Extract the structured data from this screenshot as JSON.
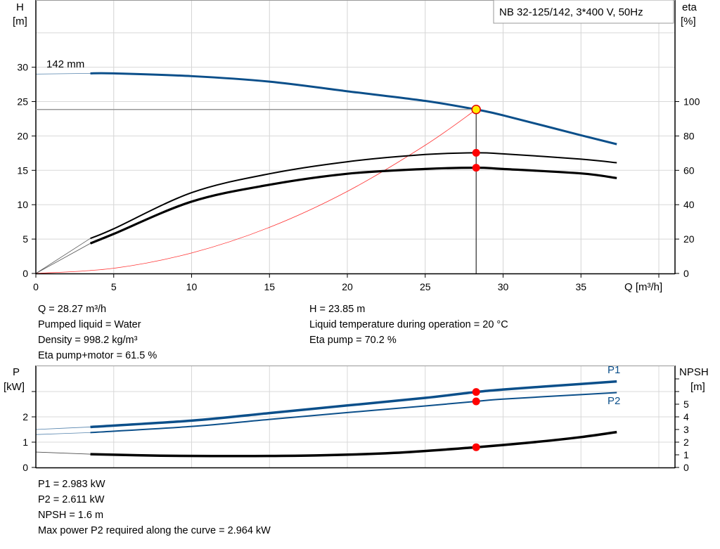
{
  "chart_data": [
    {
      "type": "line",
      "title": "NB 32-125/142, 3*400 V, 50Hz",
      "xlabel": "Q [m³/h]",
      "ylabel": "H\n[m]",
      "ylabel_right": "eta\n[%]",
      "xlim": [
        0,
        41
      ],
      "ylim": [
        0,
        40
      ],
      "ylim_right": [
        0,
        160
      ],
      "grid": true,
      "x_ticks": [
        "0",
        "5",
        "10",
        "15",
        "20",
        "25",
        "30",
        "35"
      ],
      "y_ticks": [
        "0",
        "5",
        "10",
        "15",
        "20",
        "25",
        "30"
      ],
      "y_ticks_right": [
        "0",
        "20",
        "40",
        "60",
        "80",
        "100"
      ],
      "annotation": "142 mm",
      "duty_point": {
        "Q": 28.27,
        "H": 23.85,
        "eta_pump": 70.2,
        "eta_pump_motor": 61.5
      },
      "series": [
        {
          "name": "142 mm",
          "axis": "H",
          "color": "#0b4f8a",
          "x": [
            0,
            3.5,
            5,
            10,
            15,
            20,
            25,
            28.27,
            30,
            35,
            37.3
          ],
          "y": [
            29.0,
            29.1,
            29.1,
            28.7,
            27.9,
            26.5,
            25.1,
            23.85,
            23.0,
            20.1,
            18.8
          ]
        },
        {
          "axis": "eta",
          "color": "#000000",
          "x": [
            3.5,
            5,
            10,
            15,
            20,
            25,
            28.27,
            30,
            35,
            37.3
          ],
          "y": [
            20.4,
            26,
            47,
            58,
            65,
            69.2,
            70.2,
            69.6,
            66.5,
            64.4
          ]
        },
        {
          "axis": "eta",
          "color": "#000000",
          "x": [
            3.5,
            5,
            10,
            15,
            20,
            25,
            28.27,
            30,
            35,
            37.3
          ],
          "y": [
            17.5,
            23,
            41.8,
            51.6,
            58,
            60.8,
            61.5,
            60.8,
            58.2,
            55.5
          ]
        },
        {
          "axis": "H",
          "color": "#ff3030",
          "x": [
            0,
            5,
            10,
            15,
            20,
            25,
            28.27
          ],
          "y": [
            0,
            0.75,
            2.98,
            6.71,
            11.94,
            18.65,
            23.85
          ]
        }
      ]
    },
    {
      "type": "line",
      "ylabel": "P\n[kW]",
      "ylabel_right": "NPSH\n[m]",
      "xlim": [
        0,
        41
      ],
      "ylim": [
        0,
        4
      ],
      "ylim_right": [
        0,
        8
      ],
      "grid": true,
      "y_ticks": [
        "0",
        "1",
        "2"
      ],
      "y_ticks_right": [
        "0",
        "1",
        "2",
        "3",
        "4",
        "5"
      ],
      "series": [
        {
          "name": "P1",
          "axis": "P",
          "color": "#0b4f8a",
          "x": [
            0,
            3.5,
            10,
            15,
            20,
            25,
            28.27,
            30,
            35,
            37.3
          ],
          "y": [
            1.5,
            1.6,
            1.85,
            2.15,
            2.45,
            2.75,
            2.983,
            3.08,
            3.3,
            3.4
          ]
        },
        {
          "name": "P2",
          "axis": "P",
          "color": "#0b4f8a",
          "x": [
            0,
            3.5,
            10,
            15,
            20,
            25,
            28.27,
            30,
            35,
            37.3
          ],
          "y": [
            1.3,
            1.38,
            1.62,
            1.9,
            2.17,
            2.43,
            2.611,
            2.7,
            2.88,
            2.96
          ]
        },
        {
          "name": "NPSH",
          "axis": "NPSH",
          "color": "#000000",
          "x": [
            0,
            3.5,
            8,
            13,
            18,
            23,
            28.27,
            32,
            35,
            37.3
          ],
          "y": [
            1.22,
            1.05,
            0.93,
            0.9,
            0.95,
            1.15,
            1.6,
            2.0,
            2.4,
            2.8
          ]
        }
      ]
    }
  ],
  "info_top": {
    "left": [
      "Q = 28.27 m³/h",
      "Pumped liquid = Water",
      "Density = 998.2 kg/m³",
      "Eta pump+motor = 61.5 %"
    ],
    "right": [
      "H = 23.85 m",
      "Liquid temperature during operation = 20 °C",
      "Eta pump = 70.2 %"
    ]
  },
  "info_bottom": [
    "P1 = 2.983 kW",
    "P2 = 2.611 kW",
    "NPSH = 1.6 m",
    "Max power P2 required along the curve = 2.964 kW"
  ],
  "labels": {
    "h": "H",
    "h_unit": "[m]",
    "eta": "eta",
    "eta_unit": "[%]",
    "q": "Q [m³/h]",
    "p": "P",
    "p_unit": "[kW]",
    "npsh": "NPSH",
    "npsh_unit": "[m]",
    "p1": "P1",
    "p2": "P2"
  }
}
